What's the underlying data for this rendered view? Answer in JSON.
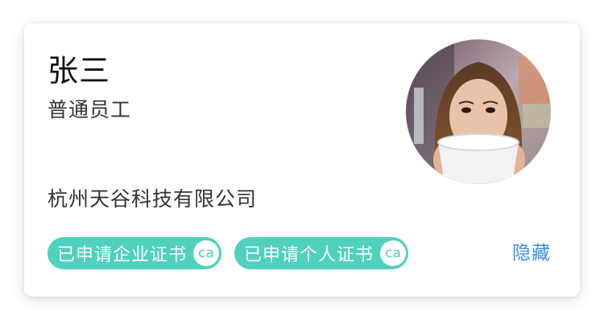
{
  "profile": {
    "name": "张三",
    "role": "普通员工",
    "company": "杭州天谷科技有限公司"
  },
  "badges": [
    {
      "label": "已申请企业证书",
      "icon_text": "ca",
      "icon": "ca-icon"
    },
    {
      "label": "已申请个人证书",
      "icon_text": "ca",
      "icon": "ca-icon"
    }
  ],
  "actions": {
    "hide_label": "隐藏"
  },
  "colors": {
    "badge_bg": "#4fd1bd",
    "link": "#3a8ee6",
    "card_bg": "#ffffff"
  }
}
